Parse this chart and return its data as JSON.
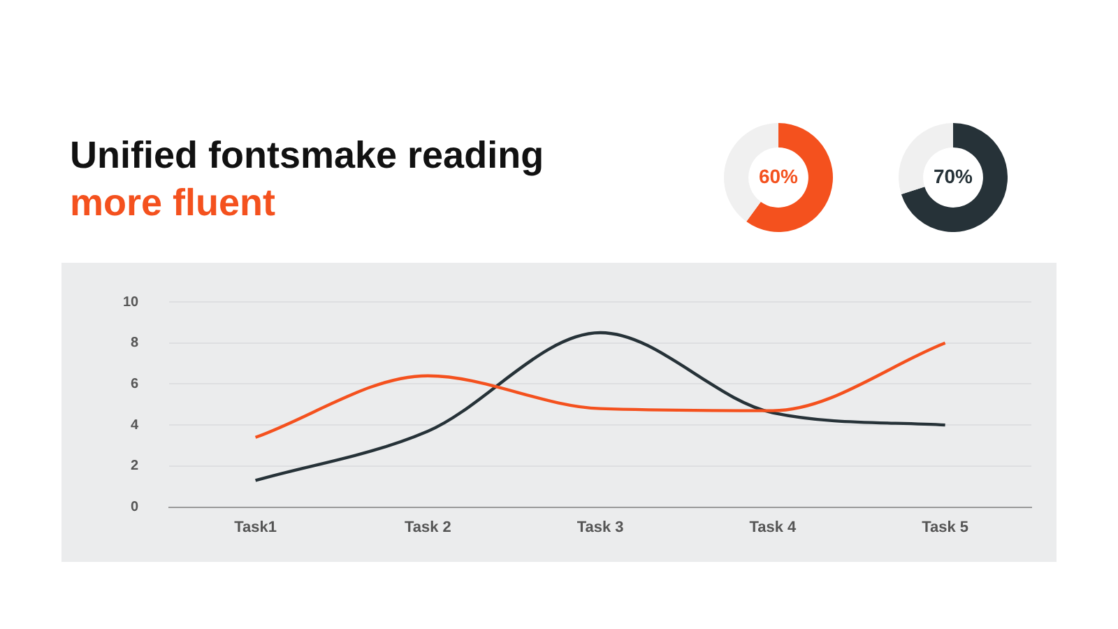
{
  "chart_data": [
    {
      "type": "line",
      "title": "Unified fontsmake reading",
      "subtitle": "more fluent",
      "categories": [
        "Task1",
        "Task 2",
        "Task 3",
        "Task 4",
        "Task 5"
      ],
      "series": [
        {
          "color": "#f4511e",
          "values": [
            3.4,
            6.4,
            4.8,
            4.7,
            8.0
          ]
        },
        {
          "color": "#263238",
          "values": [
            1.3,
            3.7,
            8.5,
            4.6,
            4.0
          ]
        }
      ],
      "ylim": [
        0,
        10
      ],
      "yticks": [
        0,
        2,
        4,
        6,
        8,
        10
      ],
      "grid": "y",
      "legend": false,
      "marker": "none",
      "line_style": "solid"
    },
    {
      "type": "donut",
      "categories": [
        null,
        null
      ],
      "values": [
        60,
        40
      ],
      "colors": [
        "#f4511e",
        "#f0f0f0"
      ],
      "value_labels": [
        "60%",
        null
      ],
      "legend": false
    },
    {
      "type": "donut",
      "categories": [
        null,
        null
      ],
      "values": [
        70,
        30
      ],
      "colors": [
        "#263238",
        "#f0f0f0"
      ],
      "value_labels": [
        "70%",
        null
      ],
      "legend": false
    }
  ]
}
